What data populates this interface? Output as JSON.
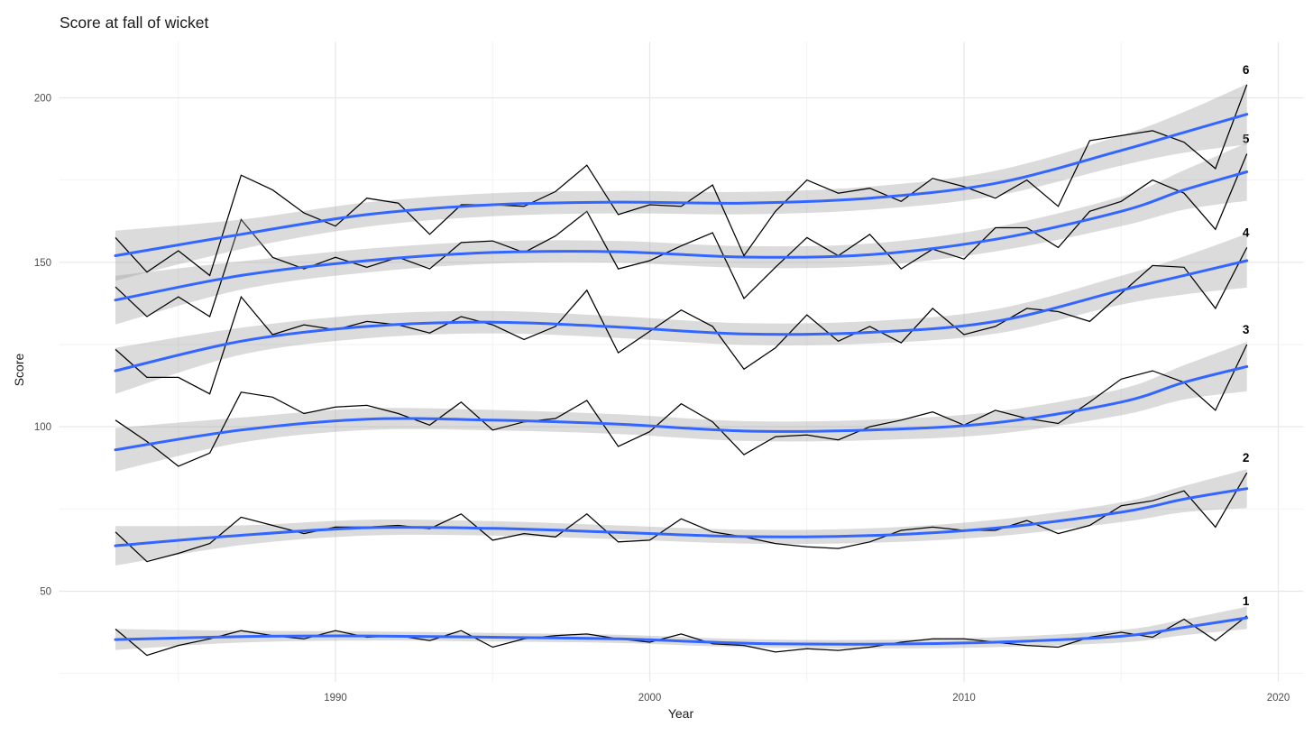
{
  "chart_data": {
    "type": "line",
    "title": "Score at fall of wicket",
    "xlabel": "Year",
    "ylabel": "Score",
    "x_ticks": [
      1990,
      2000,
      2010,
      2020
    ],
    "x_minor_ticks": [
      1985,
      1995,
      2005,
      2015
    ],
    "y_ticks": [
      50,
      100,
      150,
      200
    ],
    "y_minor_ticks": [
      25,
      75,
      125,
      175
    ],
    "xlim": [
      1981.2,
      2020.8
    ],
    "ylim": [
      22.5,
      217
    ],
    "grid": "on",
    "legend": "labels at right end of each series",
    "years": [
      1983,
      1984,
      1985,
      1986,
      1987,
      1988,
      1989,
      1990,
      1991,
      1992,
      1993,
      1994,
      1995,
      1996,
      1997,
      1998,
      1999,
      2000,
      2001,
      2002,
      2003,
      2004,
      2005,
      2006,
      2007,
      2008,
      2009,
      2010,
      2011,
      2012,
      2013,
      2014,
      2015,
      2016,
      2017,
      2018,
      2019
    ],
    "trend_years": [
      1983,
      1987,
      1991,
      1995,
      1999,
      2003,
      2007,
      2011,
      2015,
      2017,
      2019
    ],
    "series": [
      {
        "label": "1",
        "values": [
          38.5,
          30.5,
          33.5,
          35.5,
          38,
          36.5,
          35.5,
          38,
          36,
          36.5,
          35,
          38,
          33,
          35.5,
          36.5,
          37,
          35.5,
          34.5,
          37,
          34,
          33.5,
          31.5,
          32.5,
          32,
          33,
          34.5,
          35.5,
          35.5,
          34.5,
          33.5,
          33,
          36,
          37.5,
          36,
          41.5,
          35,
          42.5
        ],
        "trend": [
          35.3,
          36.2,
          36.4,
          36.0,
          35.5,
          34.2,
          33.9,
          34.5,
          36.3,
          39.0,
          41.9
        ],
        "band_halfwidth": [
          3.2,
          1.8,
          1.4,
          1.3,
          1.25,
          1.25,
          1.3,
          1.5,
          1.9,
          2.4,
          3.4
        ]
      },
      {
        "label": "2",
        "values": [
          68,
          59,
          61.5,
          64.5,
          72.5,
          70,
          67.5,
          69.5,
          69.5,
          70,
          69,
          73.5,
          65.5,
          67.5,
          66.5,
          73.5,
          65,
          65.5,
          72,
          68,
          66.5,
          64.5,
          63.5,
          63,
          65,
          68.5,
          69.5,
          68.5,
          68.5,
          71.5,
          67.5,
          70,
          76,
          77.5,
          80.5,
          69.5,
          86
        ],
        "trend": [
          63.8,
          67.0,
          69.3,
          69.1,
          67.9,
          66.6,
          66.9,
          69.2,
          74.0,
          78.0,
          81.2
        ],
        "band_halfwidth": [
          6.0,
          3.0,
          2.4,
          2.2,
          2.1,
          2.1,
          2.2,
          2.5,
          3.0,
          4.0,
          5.9
        ]
      },
      {
        "label": "3",
        "values": [
          102,
          95.5,
          88,
          92,
          110.5,
          109,
          104,
          106,
          106.5,
          104,
          100.5,
          107.5,
          99,
          101.5,
          102.5,
          108,
          94,
          98.5,
          107,
          101.5,
          91.5,
          97,
          97.5,
          96,
          100,
          102,
          104.5,
          100.5,
          105,
          102.5,
          101,
          107.5,
          114.5,
          117,
          113.5,
          105,
          125
        ],
        "trend": [
          93.0,
          99.0,
          102.3,
          102.0,
          100.8,
          98.7,
          99.0,
          101.2,
          107.5,
          113.5,
          118.3
        ],
        "band_halfwidth": [
          6.6,
          3.8,
          3.3,
          3.1,
          3.0,
          3.0,
          3.1,
          3.4,
          4.0,
          5.2,
          7.5
        ]
      },
      {
        "label": "4",
        "values": [
          123.5,
          115,
          115,
          110,
          139.5,
          128,
          131,
          129.5,
          132,
          131,
          128.5,
          133.5,
          131,
          126.5,
          130.5,
          141.5,
          122.5,
          129,
          135.5,
          130.5,
          117.5,
          124,
          134,
          126,
          130.5,
          125.5,
          136,
          128,
          130.5,
          136,
          135,
          132,
          140.5,
          149,
          148.5,
          136,
          154.5
        ],
        "trend": [
          117.0,
          126.0,
          130.5,
          131.8,
          130.3,
          128.2,
          128.7,
          132.0,
          141.5,
          146.0,
          150.5
        ],
        "band_halfwidth": [
          7.0,
          4.1,
          3.6,
          3.4,
          3.3,
          3.3,
          3.4,
          3.7,
          4.4,
          5.8,
          8.2
        ]
      },
      {
        "label": "5",
        "values": [
          142.5,
          133.5,
          139.5,
          133.5,
          163,
          151.5,
          148,
          151.5,
          148.5,
          151.5,
          148,
          156,
          156.5,
          153,
          158,
          165.5,
          148,
          150.5,
          155,
          159,
          139,
          148.5,
          157.5,
          152,
          158.5,
          148,
          154,
          151,
          160.5,
          160.5,
          154.5,
          165.5,
          168.5,
          175,
          171,
          160,
          183
        ],
        "trend": [
          138.5,
          146.0,
          150.5,
          153.0,
          153.2,
          151.6,
          152.3,
          157.0,
          165.5,
          172.0,
          177.5
        ],
        "band_halfwidth": [
          7.4,
          4.3,
          3.6,
          3.4,
          3.3,
          3.3,
          3.4,
          3.7,
          4.5,
          6.0,
          8.8
        ]
      },
      {
        "label": "6",
        "values": [
          157.5,
          147,
          153.5,
          146,
          176.5,
          172,
          165,
          161,
          169.5,
          168,
          158.5,
          167.5,
          167.5,
          167,
          171.5,
          179.5,
          164.5,
          167.5,
          167,
          173.5,
          152,
          165.5,
          175,
          171,
          172.5,
          168.5,
          175.5,
          173,
          169.5,
          175,
          167,
          187,
          188.5,
          190,
          186.5,
          178.5,
          204
        ],
        "trend": [
          152.0,
          158.5,
          164.5,
          167.5,
          168.3,
          168.0,
          169.5,
          174.0,
          184.0,
          189.5,
          195.0
        ],
        "band_halfwidth": [
          7.6,
          4.5,
          3.7,
          3.5,
          3.4,
          3.4,
          3.5,
          3.8,
          4.6,
          6.2,
          9.2
        ]
      }
    ],
    "colors": {
      "data_line": "#000000",
      "trend_line": "#3366FF",
      "band_fill": "#999999",
      "grid_major": "#E7E7E7",
      "grid_minor": "#F2F2F2",
      "tick_label": "#4d4d4d",
      "text": "#1a1a1a",
      "background": "#FFFFFF"
    }
  }
}
